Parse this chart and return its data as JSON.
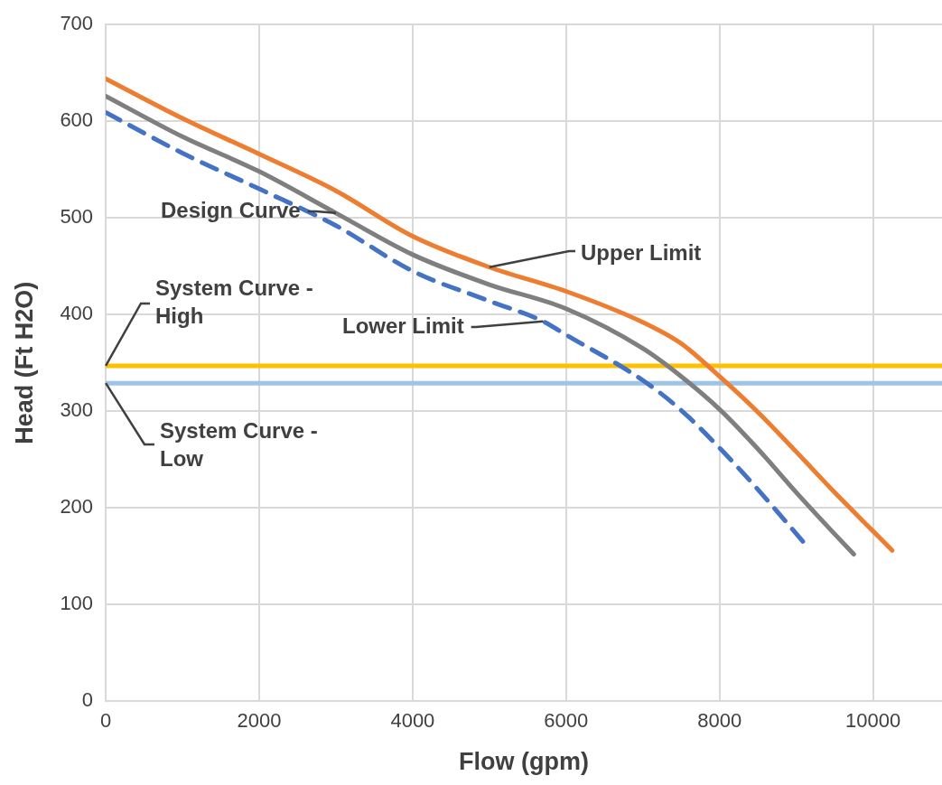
{
  "chart_data": {
    "type": "line",
    "xlabel": "Flow (gpm)",
    "ylabel": "Head (Ft H2O)",
    "xlim": [
      0,
      10900
    ],
    "xticks": [
      0,
      2000,
      4000,
      6000,
      8000,
      10000
    ],
    "ylim": [
      0,
      700
    ],
    "yticks": [
      0,
      100,
      200,
      300,
      400,
      500,
      600,
      700
    ],
    "grid": true,
    "legend": false,
    "series": [
      {
        "name": "Upper Limit",
        "color": "#ed7d31",
        "x": [
          0,
          1000,
          2000,
          3000,
          4000,
          5000,
          6000,
          7000,
          7500,
          8000,
          8500,
          9000,
          9500,
          10000,
          10250
        ],
        "values": [
          644,
          603,
          566,
          528,
          481,
          449,
          424,
          392,
          370,
          336,
          299,
          258,
          216,
          176,
          156
        ]
      },
      {
        "name": "Design Curve",
        "color": "#7f7f7f",
        "x": [
          0,
          1000,
          2000,
          3000,
          4000,
          5000,
          6000,
          7000,
          7500,
          8000,
          8500,
          9000,
          9500,
          9750
        ],
        "values": [
          626,
          584,
          548,
          505,
          462,
          431,
          406,
          365,
          336,
          302,
          261,
          216,
          173,
          152
        ]
      },
      {
        "name": "Lower Limit",
        "color": "#4472c4",
        "line_style": "dashed",
        "x": [
          0,
          1000,
          2000,
          3000,
          4000,
          5000,
          5700,
          6000,
          7000,
          7500,
          8000,
          8500,
          9100
        ],
        "values": [
          609,
          567,
          530,
          492,
          445,
          414,
          393,
          379,
          332,
          301,
          262,
          219,
          164
        ]
      },
      {
        "name": "System Curve - High",
        "color": "#ffc000",
        "x": [
          0,
          10900
        ],
        "values": [
          347,
          347
        ]
      },
      {
        "name": "System Curve - Low",
        "color": "#9dc3e6",
        "x": [
          0,
          10900
        ],
        "values": [
          329,
          329
        ]
      }
    ]
  }
}
